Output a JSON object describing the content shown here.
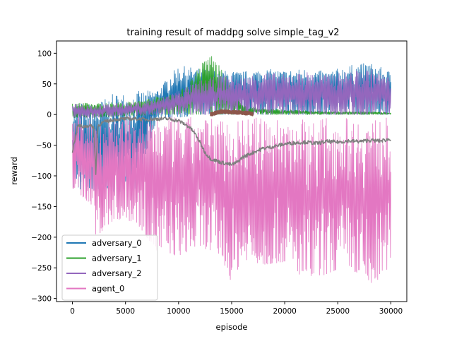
{
  "chart_data": {
    "type": "line",
    "title": "training result of maddpg solve simple_tag_v2",
    "xlabel": "episode",
    "ylabel": "reward",
    "xlim": [
      -1500,
      31500
    ],
    "ylim": [
      -305,
      120
    ],
    "xticks": [
      0,
      5000,
      10000,
      15000,
      20000,
      25000,
      30000
    ],
    "yticks": [
      100,
      50,
      0,
      -50,
      -100,
      -150,
      -200,
      -250,
      -300
    ],
    "xtick_labels": [
      "0",
      "5000",
      "10000",
      "15000",
      "20000",
      "25000",
      "30000"
    ],
    "ytick_labels": [
      "100",
      "50",
      "0",
      "−50",
      "−100",
      "−150",
      "−200",
      "−250",
      "−300"
    ],
    "legend_position": "lower-left",
    "series": [
      {
        "name": "adversary_0",
        "color": "#1f77b4",
        "x": [
          0,
          2000,
          4000,
          6000,
          8000,
          10000,
          12000,
          14000,
          16000,
          18000,
          20000,
          22000,
          24000,
          26000,
          28000,
          30000
        ],
        "upper": [
          22,
          18,
          35,
          38,
          40,
          80,
          75,
          72,
          70,
          75,
          72,
          75,
          70,
          80,
          85,
          70
        ],
        "lower": [
          -120,
          -125,
          -128,
          -120,
          -5,
          -5,
          0,
          0,
          0,
          0,
          0,
          0,
          0,
          0,
          0,
          0
        ]
      },
      {
        "name": "adversary_1",
        "color": "#2ca02c",
        "x": [
          0,
          2000,
          4000,
          6000,
          8000,
          10000,
          11000,
          12000,
          13000,
          14000,
          15000,
          16000,
          18000,
          20000,
          24000,
          28000,
          30000
        ],
        "upper": [
          20,
          18,
          20,
          22,
          30,
          35,
          55,
          80,
          102,
          75,
          48,
          15,
          10,
          8,
          5,
          5,
          3
        ],
        "lower": [
          -5,
          -5,
          -3,
          -2,
          0,
          0,
          0,
          0,
          0,
          0,
          0,
          0,
          0,
          0,
          0,
          0,
          0
        ]
      },
      {
        "name": "adversary_2",
        "color": "#9467bd",
        "x": [
          0,
          2000,
          4000,
          6000,
          8000,
          10000,
          12000,
          14000,
          16000,
          18000,
          20000,
          22000,
          24000,
          26000,
          28000,
          30000
        ],
        "upper": [
          20,
          15,
          18,
          20,
          25,
          40,
          55,
          65,
          60,
          70,
          65,
          70,
          65,
          70,
          75,
          60
        ],
        "lower": [
          -5,
          -5,
          -3,
          -2,
          0,
          0,
          0,
          0,
          0,
          0,
          0,
          0,
          0,
          0,
          0,
          0
        ]
      },
      {
        "name": "agent_0",
        "color": "#e377c2",
        "x": [
          0,
          2000,
          2200,
          4000,
          6000,
          8000,
          10000,
          12000,
          14000,
          15000,
          16000,
          18000,
          20000,
          22000,
          24000,
          26000,
          28000,
          30000
        ],
        "upper": [
          -5,
          -5,
          -5,
          -3,
          -3,
          -3,
          -3,
          -5,
          -5,
          -5,
          -5,
          -5,
          -5,
          -5,
          -5,
          -5,
          -5,
          -5
        ],
        "lower": [
          -120,
          -150,
          -200,
          -170,
          -175,
          -225,
          -230,
          -215,
          -230,
          -275,
          -235,
          -245,
          -240,
          -270,
          -260,
          -245,
          -285,
          -245
        ]
      },
      {
        "name": "",
        "color": "#7f7f7f",
        "x": [
          0,
          500,
          1000,
          1500,
          2000,
          2200,
          2400,
          3000,
          4000,
          5000,
          6000,
          7000,
          8000,
          9000,
          10000,
          10500,
          11000,
          11500,
          12000,
          12500,
          13000,
          13500,
          14000,
          14500,
          15000,
          15500,
          16000,
          17000,
          18000,
          19000,
          20000,
          21000,
          22000,
          23000,
          24000,
          25000,
          26000,
          27000,
          28000,
          29000,
          30000
        ],
        "values": [
          -60,
          -18,
          -20,
          -18,
          -20,
          -95,
          -18,
          -12,
          -8,
          -7,
          -7,
          -8,
          -7,
          -7,
          -10,
          -15,
          -20,
          -30,
          -45,
          -62,
          -72,
          -75,
          -78,
          -80,
          -82,
          -78,
          -70,
          -62,
          -55,
          -52,
          -48,
          -46,
          -45,
          -47,
          -44,
          -45,
          -43,
          -44,
          -42,
          -43,
          -40
        ]
      },
      {
        "name": "",
        "color": "#8c564b",
        "x": [
          13000,
          14000,
          15000,
          16000,
          17000
        ],
        "values": [
          0,
          5,
          4,
          3,
          1
        ]
      }
    ]
  }
}
